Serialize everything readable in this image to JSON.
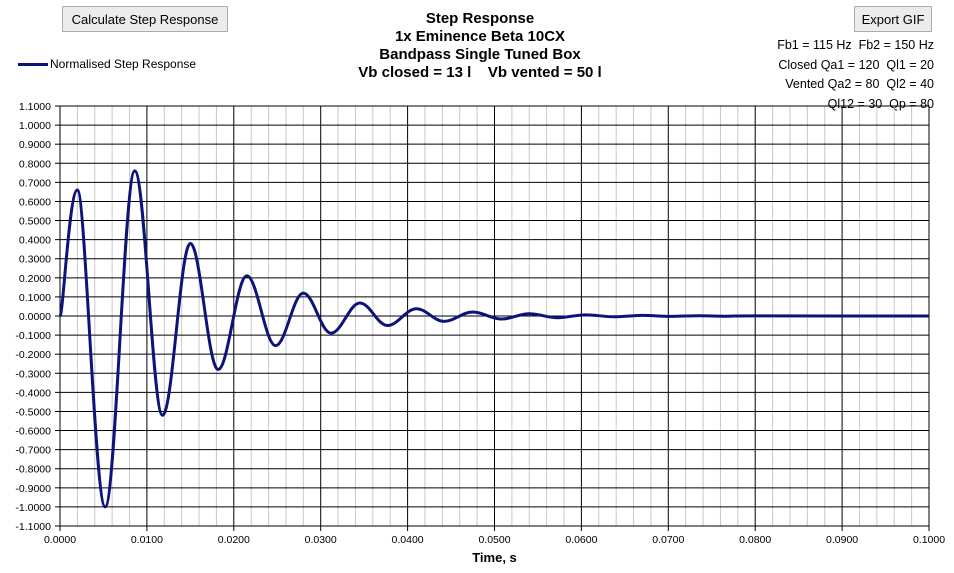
{
  "toolbar": {
    "calculate_label": "Calculate Step Response",
    "export_label": "Export GIF"
  },
  "title_lines": [
    "Step Response",
    "1x Eminence Beta 10CX",
    "Bandpass Single Tuned Box",
    "Vb closed = 13 l    Vb vented = 50 l"
  ],
  "params": [
    "Fb1 = 115 Hz  Fb2 = 150 Hz",
    "Closed Qa1 = 120  Ql1 = 20",
    "Vented Qa2 = 80  Ql2 = 40",
    "Ql12 = 30  Qp = 80"
  ],
  "colors": {
    "series": "#0d1478",
    "grid": "#000000",
    "minor_grid": "#c8c8c8"
  },
  "chart_data": {
    "type": "line",
    "title": "Step Response",
    "xlabel": "Time, s",
    "ylabel": "",
    "xlim": [
      0,
      0.1
    ],
    "ylim": [
      -1.1,
      1.1
    ],
    "x_ticks": [
      "0.0000",
      "0.0100",
      "0.0200",
      "0.0300",
      "0.0400",
      "0.0500",
      "0.0600",
      "0.0700",
      "0.0800",
      "0.0900",
      "0.1000"
    ],
    "y_ticks": [
      "1.1000",
      "1.0000",
      "0.9000",
      "0.8000",
      "0.7000",
      "0.6000",
      "0.5000",
      "0.4000",
      "0.3000",
      "0.2000",
      "0.1000",
      "0.0000",
      "-0.1000",
      "-0.2000",
      "-0.3000",
      "-0.4000",
      "-0.5000",
      "-0.6000",
      "-0.7000",
      "-0.8000",
      "-0.9000",
      "-1.0000",
      "-1.1000"
    ],
    "legend": "top-left",
    "grid": true,
    "series": [
      {
        "name": "Normalised Step Response",
        "x": [
          0,
          0.002,
          0.0052,
          0.0086,
          0.0118,
          0.015,
          0.0182,
          0.0215,
          0.0248,
          0.028,
          0.0312,
          0.0345,
          0.0377,
          0.041,
          0.0442,
          0.0475,
          0.0508,
          0.054,
          0.0572,
          0.0605,
          0.0637,
          0.067,
          0.0702,
          0.0735,
          0.0767,
          0.08,
          0.1
        ],
        "y": [
          0,
          0.66,
          -1.0,
          0.76,
          -0.52,
          0.38,
          -0.28,
          0.21,
          -0.155,
          0.12,
          -0.09,
          0.068,
          -0.05,
          0.038,
          -0.028,
          0.021,
          -0.016,
          0.012,
          -0.009,
          0.006,
          -0.004,
          0.003,
          -0.002,
          0.0015,
          -0.001,
          0.0005,
          0
        ]
      }
    ]
  }
}
